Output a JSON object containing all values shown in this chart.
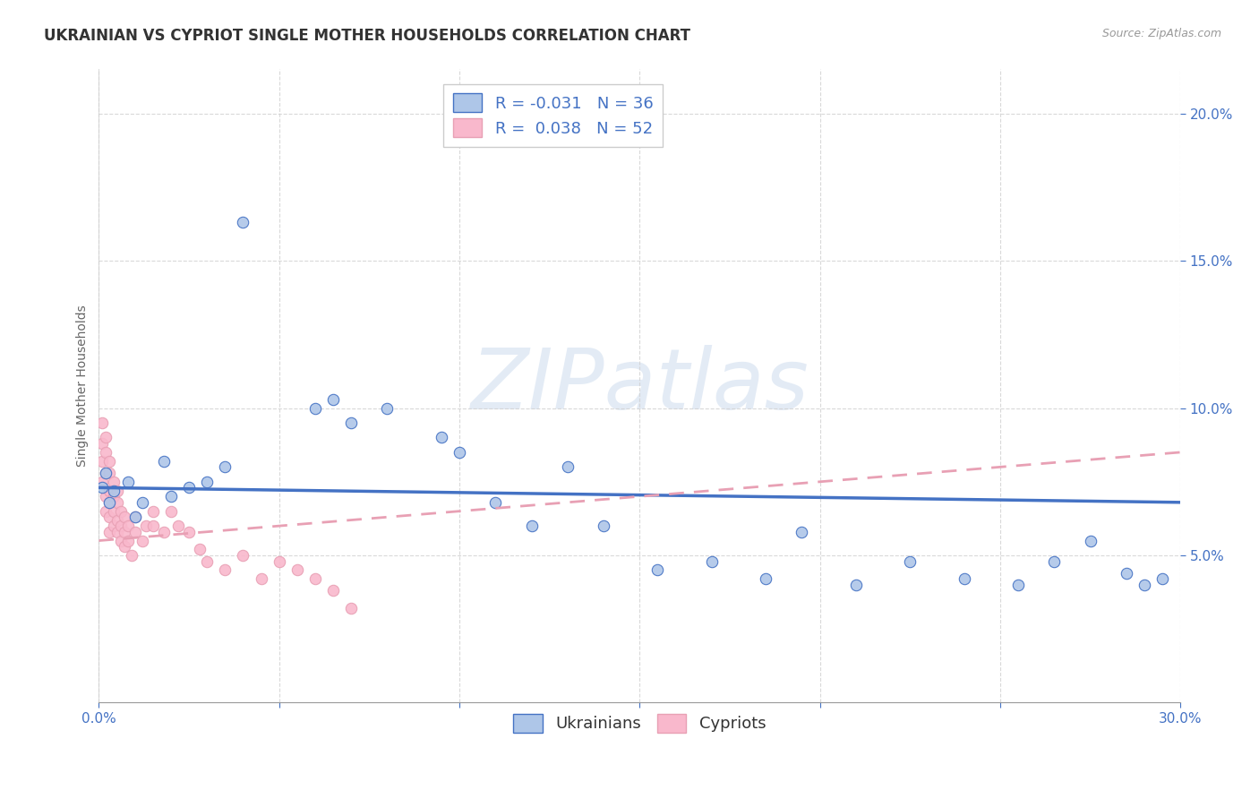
{
  "title": "UKRAINIAN VS CYPRIOT SINGLE MOTHER HOUSEHOLDS CORRELATION CHART",
  "source_text": "Source: ZipAtlas.com",
  "ylabel": "Single Mother Households",
  "xlim": [
    0.0,
    0.3
  ],
  "ylim": [
    0.0,
    0.215
  ],
  "yticks": [
    0.05,
    0.1,
    0.15,
    0.2
  ],
  "ytick_labels": [
    "5.0%",
    "10.0%",
    "15.0%",
    "20.0%"
  ],
  "xticks": [
    0.0,
    0.05,
    0.1,
    0.15,
    0.2,
    0.25,
    0.3
  ],
  "ukrainian_color": "#aec6e8",
  "cypriot_color": "#f9b8cc",
  "ukrainian_line_color": "#4472c4",
  "cypriot_line_color": "#e8a0b4",
  "R_ukrainian": -0.031,
  "N_ukrainian": 36,
  "R_cypriot": 0.038,
  "N_cypriot": 52,
  "legend_label_ukrainian": "Ukrainians",
  "legend_label_cypriot": "Cypriots",
  "watermark": "ZIPatlas",
  "background_color": "#ffffff",
  "grid_color": "#d0d0d0",
  "ukr_trend_y0": 0.073,
  "ukr_trend_y1": 0.068,
  "cyp_trend_y0": 0.055,
  "cyp_trend_y1": 0.085,
  "ukrainians_x": [
    0.001,
    0.002,
    0.003,
    0.004,
    0.008,
    0.01,
    0.012,
    0.018,
    0.02,
    0.025,
    0.03,
    0.035,
    0.04,
    0.06,
    0.065,
    0.07,
    0.08,
    0.095,
    0.1,
    0.11,
    0.12,
    0.13,
    0.14,
    0.155,
    0.17,
    0.185,
    0.195,
    0.21,
    0.225,
    0.24,
    0.255,
    0.265,
    0.275,
    0.285,
    0.29,
    0.295
  ],
  "ukrainians_y": [
    0.073,
    0.078,
    0.068,
    0.072,
    0.075,
    0.063,
    0.068,
    0.082,
    0.07,
    0.073,
    0.075,
    0.08,
    0.163,
    0.1,
    0.103,
    0.095,
    0.1,
    0.09,
    0.085,
    0.068,
    0.06,
    0.08,
    0.06,
    0.045,
    0.048,
    0.042,
    0.058,
    0.04,
    0.048,
    0.042,
    0.04,
    0.048,
    0.055,
    0.044,
    0.04,
    0.042
  ],
  "cypriots_x": [
    0.001,
    0.001,
    0.001,
    0.001,
    0.002,
    0.002,
    0.002,
    0.002,
    0.002,
    0.003,
    0.003,
    0.003,
    0.003,
    0.003,
    0.003,
    0.004,
    0.004,
    0.004,
    0.004,
    0.005,
    0.005,
    0.005,
    0.005,
    0.006,
    0.006,
    0.006,
    0.007,
    0.007,
    0.007,
    0.008,
    0.008,
    0.009,
    0.01,
    0.01,
    0.012,
    0.013,
    0.015,
    0.015,
    0.018,
    0.02,
    0.022,
    0.025,
    0.028,
    0.03,
    0.035,
    0.04,
    0.045,
    0.05,
    0.055,
    0.06,
    0.065,
    0.07
  ],
  "cypriots_y": [
    0.095,
    0.088,
    0.082,
    0.075,
    0.09,
    0.085,
    0.078,
    0.07,
    0.065,
    0.082,
    0.078,
    0.072,
    0.068,
    0.063,
    0.058,
    0.075,
    0.07,
    0.065,
    0.06,
    0.072,
    0.068,
    0.062,
    0.058,
    0.065,
    0.06,
    0.055,
    0.063,
    0.058,
    0.053,
    0.06,
    0.055,
    0.05,
    0.063,
    0.058,
    0.055,
    0.06,
    0.065,
    0.06,
    0.058,
    0.065,
    0.06,
    0.058,
    0.052,
    0.048,
    0.045,
    0.05,
    0.042,
    0.048,
    0.045,
    0.042,
    0.038,
    0.032
  ],
  "title_fontsize": 12,
  "axis_label_fontsize": 10,
  "tick_fontsize": 11,
  "legend_fontsize": 13
}
